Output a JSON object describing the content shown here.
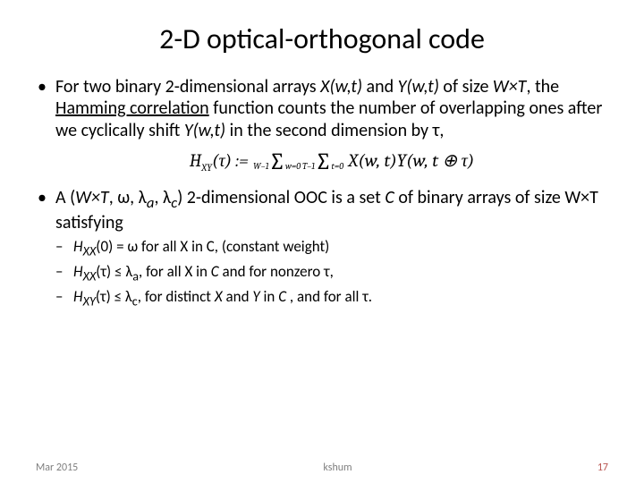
{
  "title": "2-D optical-orthogonal code",
  "bullet1": {
    "pre": "For two binary 2-dimensional  arrays ",
    "x": "X(w,t)",
    "mid1": " and ",
    "y": "Y(w,t)",
    "mid2": " of size ",
    "wt": "W×T",
    "mid3": ", the ",
    "ham": "Hamming correlation",
    "mid4": " function counts the number of overlapping ones after we cyclically shift ",
    "y2": "Y(w,t)",
    "tail": " in the second dimension by τ,"
  },
  "formula": {
    "lhs_h": "H",
    "lhs_sub": "XY",
    "lhs_arg": "(τ) := ",
    "sum1_upper": "W−1",
    "sum1_lower": "w=0",
    "sum2_upper": "T−1",
    "sum2_lower": "t=0",
    "rhs": " X(w, t)Y(w, t ⊕ τ)"
  },
  "bullet2": {
    "pre": "A (",
    "wt": "W×T",
    "seq": ", ω, λ",
    "sa": "a",
    "seq2": ", λ",
    "sc": "c",
    "mid": ") 2-dimensional OOC is a set ",
    "cset": "C",
    "mid2": " of binary arrays of size W×T satisfying",
    "sub1_a": "H",
    "sub1_xx": "XX",
    "sub1_b": "(0) = ω for all X in C,   (constant weight)",
    "sub2_a": "H",
    "sub2_xx": "XX",
    "sub2_b": "(τ) ≤ λ",
    "sub2_sa": "a",
    "sub2_c": ", for all X in ",
    "sub2_cit": "C",
    "sub2_d": " and for nonzero τ,",
    "sub3_a": "H",
    "sub3_xy": "XY",
    "sub3_b": "(τ) ≤ λ",
    "sub3_sc": "c",
    "sub3_c": ", for distinct ",
    "sub3_x": "X",
    "sub3_d": " and ",
    "sub3_y": "Y",
    "sub3_e": " in ",
    "sub3_cit": "C",
    "sub3_f": " , and for all τ."
  },
  "footer": {
    "date": "Mar 2015",
    "author": "kshum",
    "page": "17"
  },
  "colors": {
    "bg": "#ffffff",
    "text": "#000000",
    "footer": "#7f7f7f",
    "pagenum": "#b85450"
  }
}
